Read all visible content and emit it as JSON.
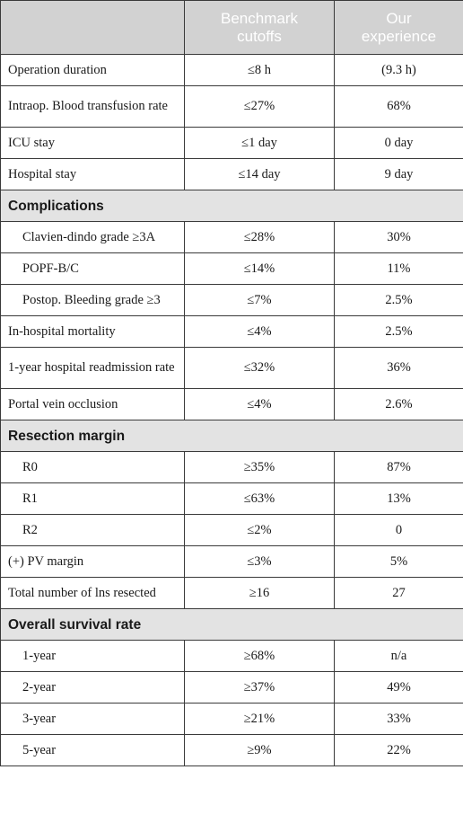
{
  "header": {
    "col1": "",
    "col2_line1": "Benchmark",
    "col2_line2": "cutoffs",
    "col3_line1": "Our",
    "col3_line2": "experience"
  },
  "rows": [
    {
      "type": "row",
      "label": "Operation duration",
      "benchmark": "≤8 h",
      "ours": "(9.3 h)",
      "indent": false,
      "tall": false
    },
    {
      "type": "row",
      "label": "Intraop. Blood transfusion rate",
      "benchmark": "≤27%",
      "ours": "68%",
      "indent": false,
      "tall": true
    },
    {
      "type": "row",
      "label": "ICU stay",
      "benchmark": "≤1 day",
      "ours": "0 day",
      "indent": false,
      "tall": false
    },
    {
      "type": "row",
      "label": "Hospital stay",
      "benchmark": "≤14 day",
      "ours": "9 day",
      "indent": false,
      "tall": false
    },
    {
      "type": "section",
      "label": "Complications"
    },
    {
      "type": "row",
      "label": "Clavien-dindo grade ≥3A",
      "benchmark": "≤28%",
      "ours": "30%",
      "indent": true,
      "tall": false
    },
    {
      "type": "row",
      "label": "POPF-B/C",
      "benchmark": "≤14%",
      "ours": "11%",
      "indent": true,
      "tall": false
    },
    {
      "type": "row",
      "label": "Postop. Bleeding grade ≥3",
      "benchmark": "≤7%",
      "ours": "2.5%",
      "indent": true,
      "tall": false
    },
    {
      "type": "row",
      "label": "In-hospital mortality",
      "benchmark": "≤4%",
      "ours": "2.5%",
      "indent": false,
      "tall": false
    },
    {
      "type": "row",
      "label": "1-year hospital readmission rate",
      "benchmark": "≤32%",
      "ours": "36%",
      "indent": false,
      "tall": true
    },
    {
      "type": "row",
      "label": "Portal vein occlusion",
      "benchmark": "≤4%",
      "ours": "2.6%",
      "indent": false,
      "tall": false
    },
    {
      "type": "section",
      "label": "Resection margin"
    },
    {
      "type": "row",
      "label": "R0",
      "benchmark": "≥35%",
      "ours": "87%",
      "indent": true,
      "tall": false
    },
    {
      "type": "row",
      "label": "R1",
      "benchmark": "≤63%",
      "ours": "13%",
      "indent": true,
      "tall": false
    },
    {
      "type": "row",
      "label": "R2",
      "benchmark": "≤2%",
      "ours": "0",
      "indent": true,
      "tall": false
    },
    {
      "type": "row",
      "label": "(+) PV margin",
      "benchmark": "≤3%",
      "ours": "5%",
      "indent": false,
      "tall": false
    },
    {
      "type": "row",
      "label": "Total number of lns resected",
      "benchmark": "≥16",
      "ours": "27",
      "indent": false,
      "tall": false
    },
    {
      "type": "section",
      "label": "Overall survival rate"
    },
    {
      "type": "row",
      "label": "1-year",
      "benchmark": "≥68%",
      "ours": "n/a",
      "indent": true,
      "tall": false
    },
    {
      "type": "row",
      "label": "2-year",
      "benchmark": "≥37%",
      "ours": "49%",
      "indent": true,
      "tall": false
    },
    {
      "type": "row",
      "label": "3-year",
      "benchmark": "≥21%",
      "ours": "33%",
      "indent": true,
      "tall": false
    },
    {
      "type": "row",
      "label": "5-year",
      "benchmark": "≥9%",
      "ours": "22%",
      "indent": true,
      "tall": false
    }
  ]
}
